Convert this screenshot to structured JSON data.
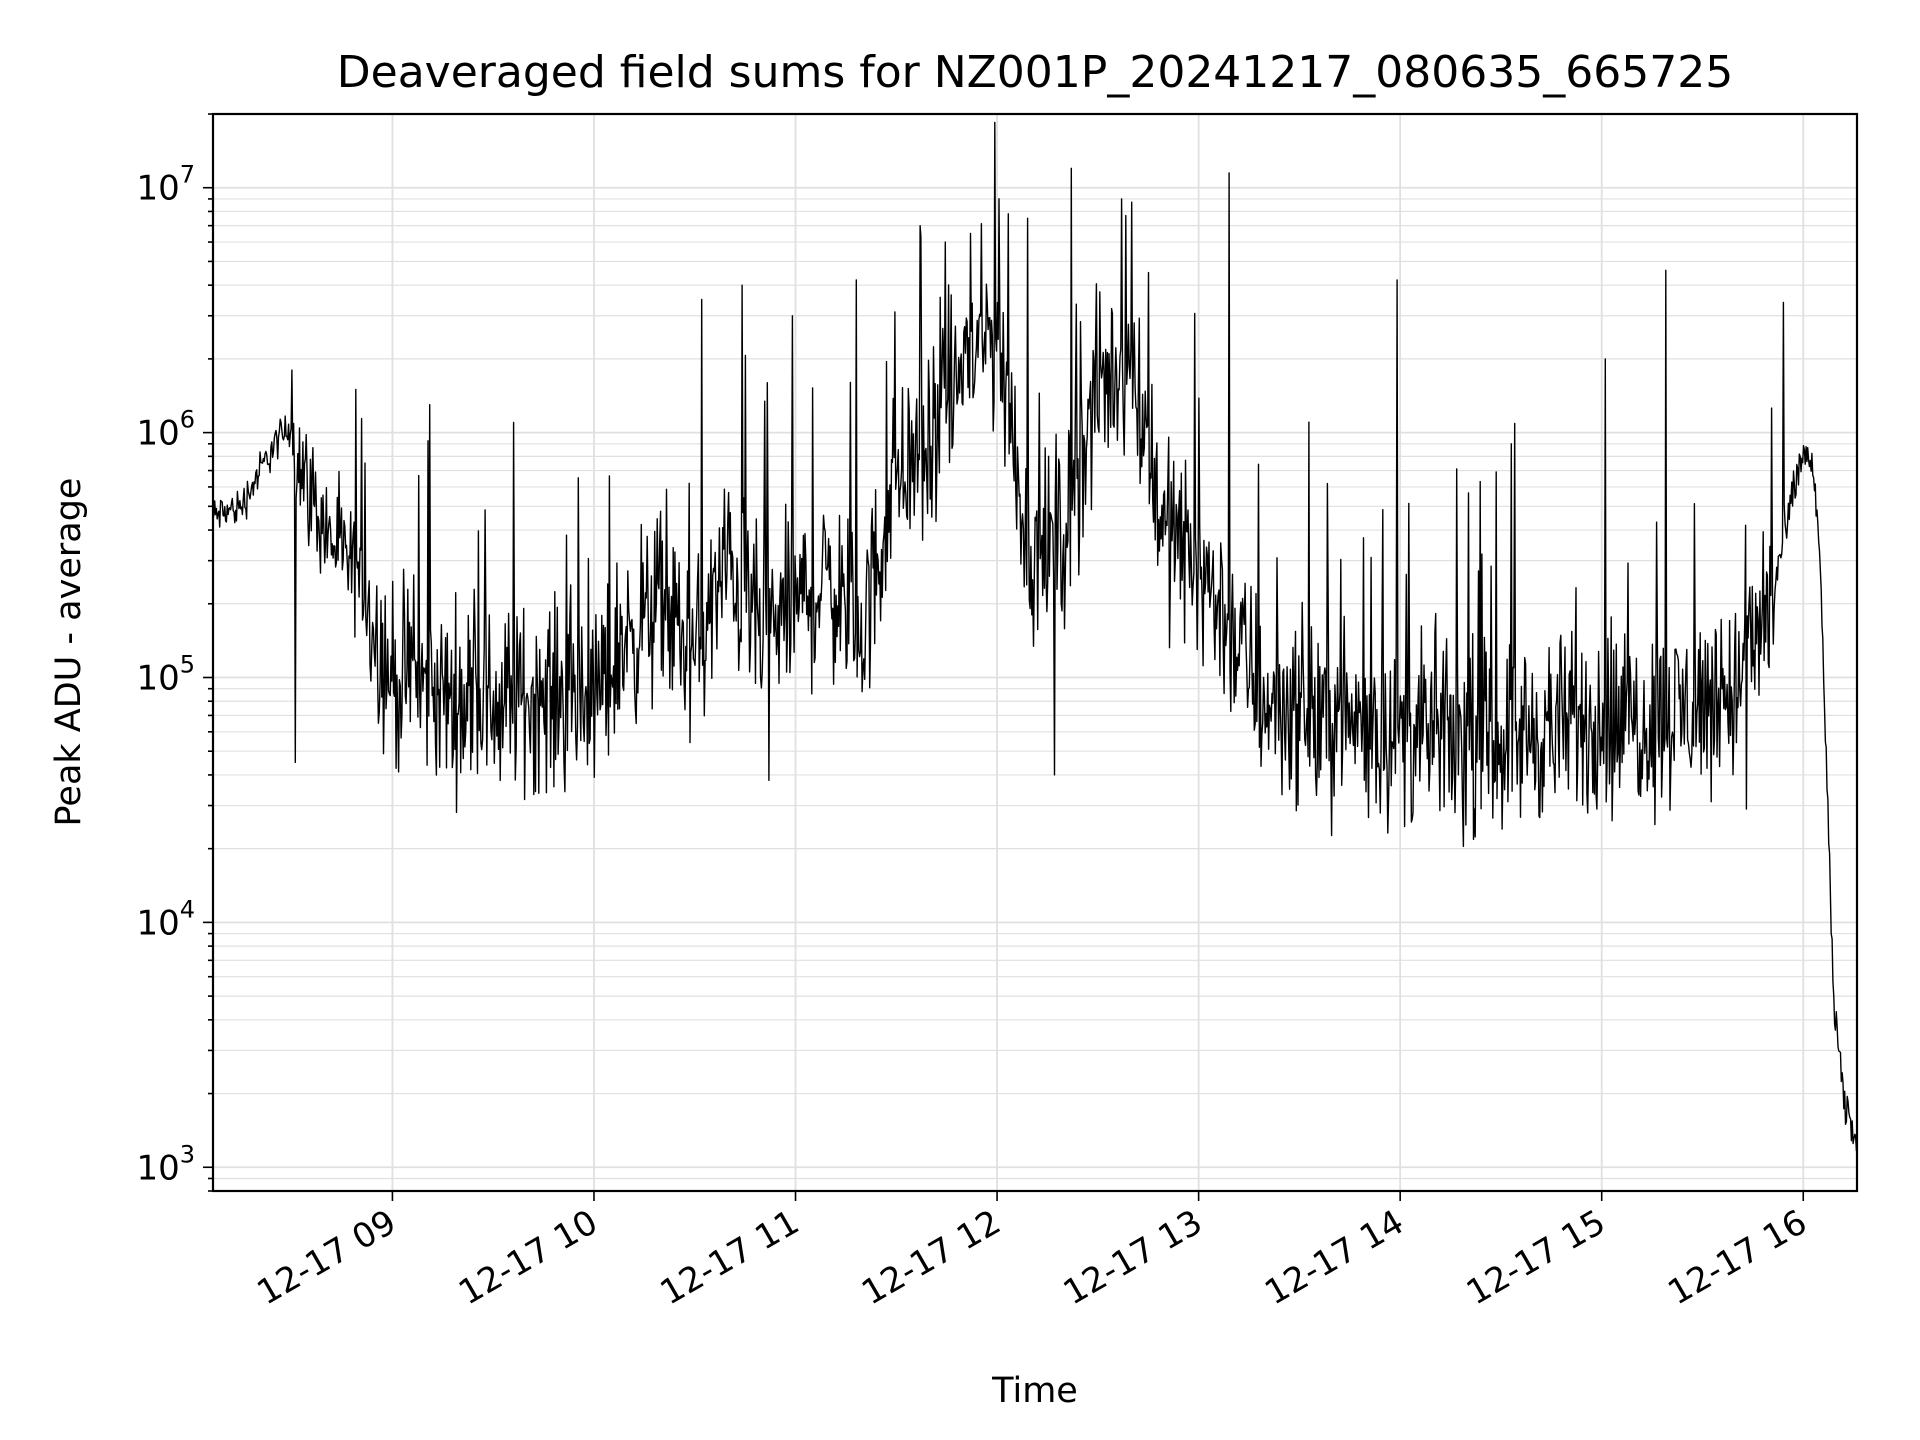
{
  "chart_data": {
    "type": "line",
    "title": "Deaveraged field sums for NZ001P_20241217_080635_665725",
    "xlabel": "Time",
    "ylabel": "Peak ADU - average",
    "yscale": "log",
    "ylim": [
      800,
      20000000
    ],
    "xlim": [
      "2024-12-17 08:06:35",
      "2024-12-17 16:16:00"
    ],
    "grid": true,
    "x_ticks": [
      {
        "t": "2024-12-17 09:00",
        "label": "12-17 09"
      },
      {
        "t": "2024-12-17 10:00",
        "label": "12-17 10"
      },
      {
        "t": "2024-12-17 11:00",
        "label": "12-17 11"
      },
      {
        "t": "2024-12-17 12:00",
        "label": "12-17 12"
      },
      {
        "t": "2024-12-17 13:00",
        "label": "12-17 13"
      },
      {
        "t": "2024-12-17 14:00",
        "label": "12-17 14"
      },
      {
        "t": "2024-12-17 15:00",
        "label": "12-17 15"
      },
      {
        "t": "2024-12-17 16:00",
        "label": "12-17 16"
      }
    ],
    "y_ticks": [
      {
        "value": 1000,
        "base": "10",
        "exp": "3"
      },
      {
        "value": 10000,
        "base": "10",
        "exp": "4"
      },
      {
        "value": 100000,
        "base": "10",
        "exp": "5"
      },
      {
        "value": 1000000,
        "base": "10",
        "exp": "6"
      },
      {
        "value": 10000000,
        "base": "10",
        "exp": "7"
      }
    ],
    "series": [
      {
        "color": "#000000",
        "x": [
          "2024-12-17 08:06",
          "2024-12-17 08:15",
          "2024-12-17 08:25",
          "2024-12-17 08:30",
          "2024-12-17 08:32",
          "2024-12-17 08:35",
          "2024-12-17 08:40",
          "2024-12-17 08:50",
          "2024-12-17 08:55",
          "2024-12-17 09:00",
          "2024-12-17 09:15",
          "2024-12-17 09:30",
          "2024-12-17 09:45",
          "2024-12-17 10:00",
          "2024-12-17 10:10",
          "2024-12-17 10:20",
          "2024-12-17 10:30",
          "2024-12-17 10:40",
          "2024-12-17 10:50",
          "2024-12-17 11:00",
          "2024-12-17 11:10",
          "2024-12-17 11:20",
          "2024-12-17 11:30",
          "2024-12-17 11:40",
          "2024-12-17 11:50",
          "2024-12-17 12:00",
          "2024-12-17 12:10",
          "2024-12-17 12:20",
          "2024-12-17 12:30",
          "2024-12-17 12:40",
          "2024-12-17 12:50",
          "2024-12-17 13:00",
          "2024-12-17 13:10",
          "2024-12-17 13:20",
          "2024-12-17 13:40",
          "2024-12-17 14:00",
          "2024-12-17 14:20",
          "2024-12-17 14:40",
          "2024-12-17 15:00",
          "2024-12-17 15:20",
          "2024-12-17 15:40",
          "2024-12-17 15:50",
          "2024-12-17 15:55",
          "2024-12-17 16:00",
          "2024-12-17 16:03",
          "2024-12-17 16:05",
          "2024-12-17 16:07",
          "2024-12-17 16:09",
          "2024-12-17 16:12",
          "2024-12-17 16:16"
        ],
        "y": [
          450000,
          500000,
          900000,
          1050000,
          800000,
          600000,
          400000,
          250000,
          150000,
          100000,
          85000,
          80000,
          85000,
          80000,
          150000,
          200000,
          120000,
          300000,
          150000,
          200000,
          250000,
          150000,
          700000,
          800000,
          2000000,
          2500000,
          300000,
          400000,
          1500000,
          2000000,
          400000,
          300000,
          150000,
          80000,
          70000,
          60000,
          55000,
          60000,
          65000,
          70000,
          90000,
          200000,
          400000,
          850000,
          700000,
          300000,
          40000,
          5000,
          1800,
          1300
        ]
      }
    ],
    "spikes_x": [
      "2024-12-17 08:30",
      "2024-12-17 08:49",
      "2024-12-17 09:11",
      "2024-12-17 09:36",
      "2024-12-17 10:32",
      "2024-12-17 10:44",
      "2024-12-17 10:59",
      "2024-12-17 11:18",
      "2024-12-17 11:37",
      "2024-12-17 11:52",
      "2024-12-17 12:09",
      "2024-12-17 12:22",
      "2024-12-17 12:37",
      "2024-12-17 12:45",
      "2024-12-17 13:09",
      "2024-12-17 13:59",
      "2024-12-17 14:33",
      "2024-12-17 15:01",
      "2024-12-17 15:19",
      "2024-12-17 15:54"
    ],
    "spikes_y": [
      1800000,
      1500000,
      1300000,
      1100000,
      3500000,
      4000000,
      3000000,
      4200000,
      7000000,
      6500000,
      7500000,
      12000000,
      9000000,
      4500000,
      11500000,
      4200000,
      900000,
      2000000,
      4600000,
      3400000
    ],
    "dips_x": [
      "2024-12-17 08:31",
      "2024-12-17 09:32",
      "2024-12-17 10:52",
      "2024-12-17 12:17",
      "2024-12-17 13:35",
      "2024-12-17 14:22",
      "2024-12-17 15:03",
      "2024-12-17 15:43"
    ],
    "dips_y": [
      45000,
      38000,
      38000,
      40000,
      33000,
      29000,
      26000,
      29000
    ]
  }
}
